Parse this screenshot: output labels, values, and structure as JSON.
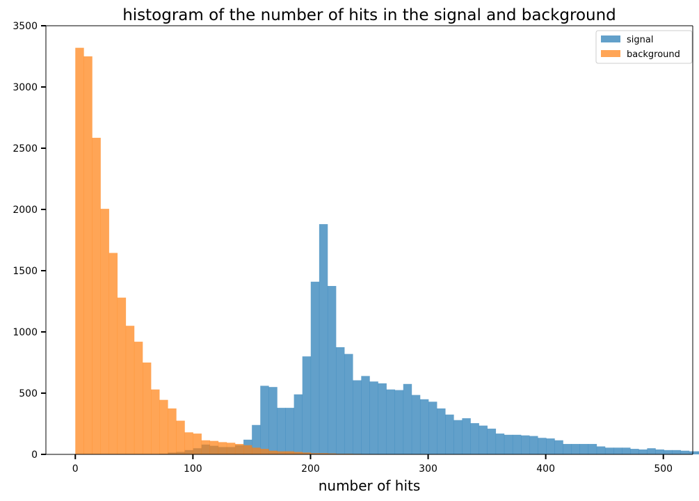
{
  "chart_data": {
    "type": "bar",
    "title": "histogram of the number of hits in the signal and background",
    "xlabel": "number of hits",
    "ylabel": "",
    "xlim": [
      -25,
      525
    ],
    "ylim": [
      0,
      3500
    ],
    "xticks": [
      0,
      100,
      200,
      300,
      400,
      500
    ],
    "yticks": [
      0,
      500,
      1000,
      1500,
      2000,
      2500,
      3000,
      3500
    ],
    "bin_width": 7.15,
    "legend": {
      "position": "top-right"
    },
    "grid": false,
    "series": [
      {
        "name": "signal",
        "color": "#1f77b4",
        "opacity": 0.7,
        "bin_start": 71.5,
        "values": [
          5,
          15,
          20,
          35,
          50,
          80,
          70,
          60,
          60,
          75,
          120,
          240,
          560,
          550,
          380,
          380,
          490,
          800,
          1410,
          1880,
          1375,
          875,
          820,
          605,
          640,
          595,
          580,
          530,
          525,
          575,
          485,
          450,
          430,
          375,
          325,
          280,
          295,
          255,
          235,
          210,
          170,
          160,
          160,
          155,
          150,
          135,
          130,
          115,
          85,
          85,
          85,
          85,
          65,
          55,
          55,
          55,
          45,
          40,
          50,
          40,
          35,
          35,
          30,
          25,
          25
        ]
      },
      {
        "name": "background",
        "color": "#ff7f0e",
        "opacity": 0.7,
        "bin_start": 0,
        "values": [
          3320,
          3250,
          2585,
          2005,
          1645,
          1280,
          1050,
          920,
          750,
          530,
          445,
          375,
          275,
          180,
          170,
          115,
          110,
          100,
          95,
          85,
          75,
          55,
          45,
          30,
          25,
          25,
          20,
          15,
          10,
          10,
          8,
          5,
          5,
          4,
          3,
          3,
          2,
          2,
          2,
          1,
          1
        ]
      }
    ]
  }
}
